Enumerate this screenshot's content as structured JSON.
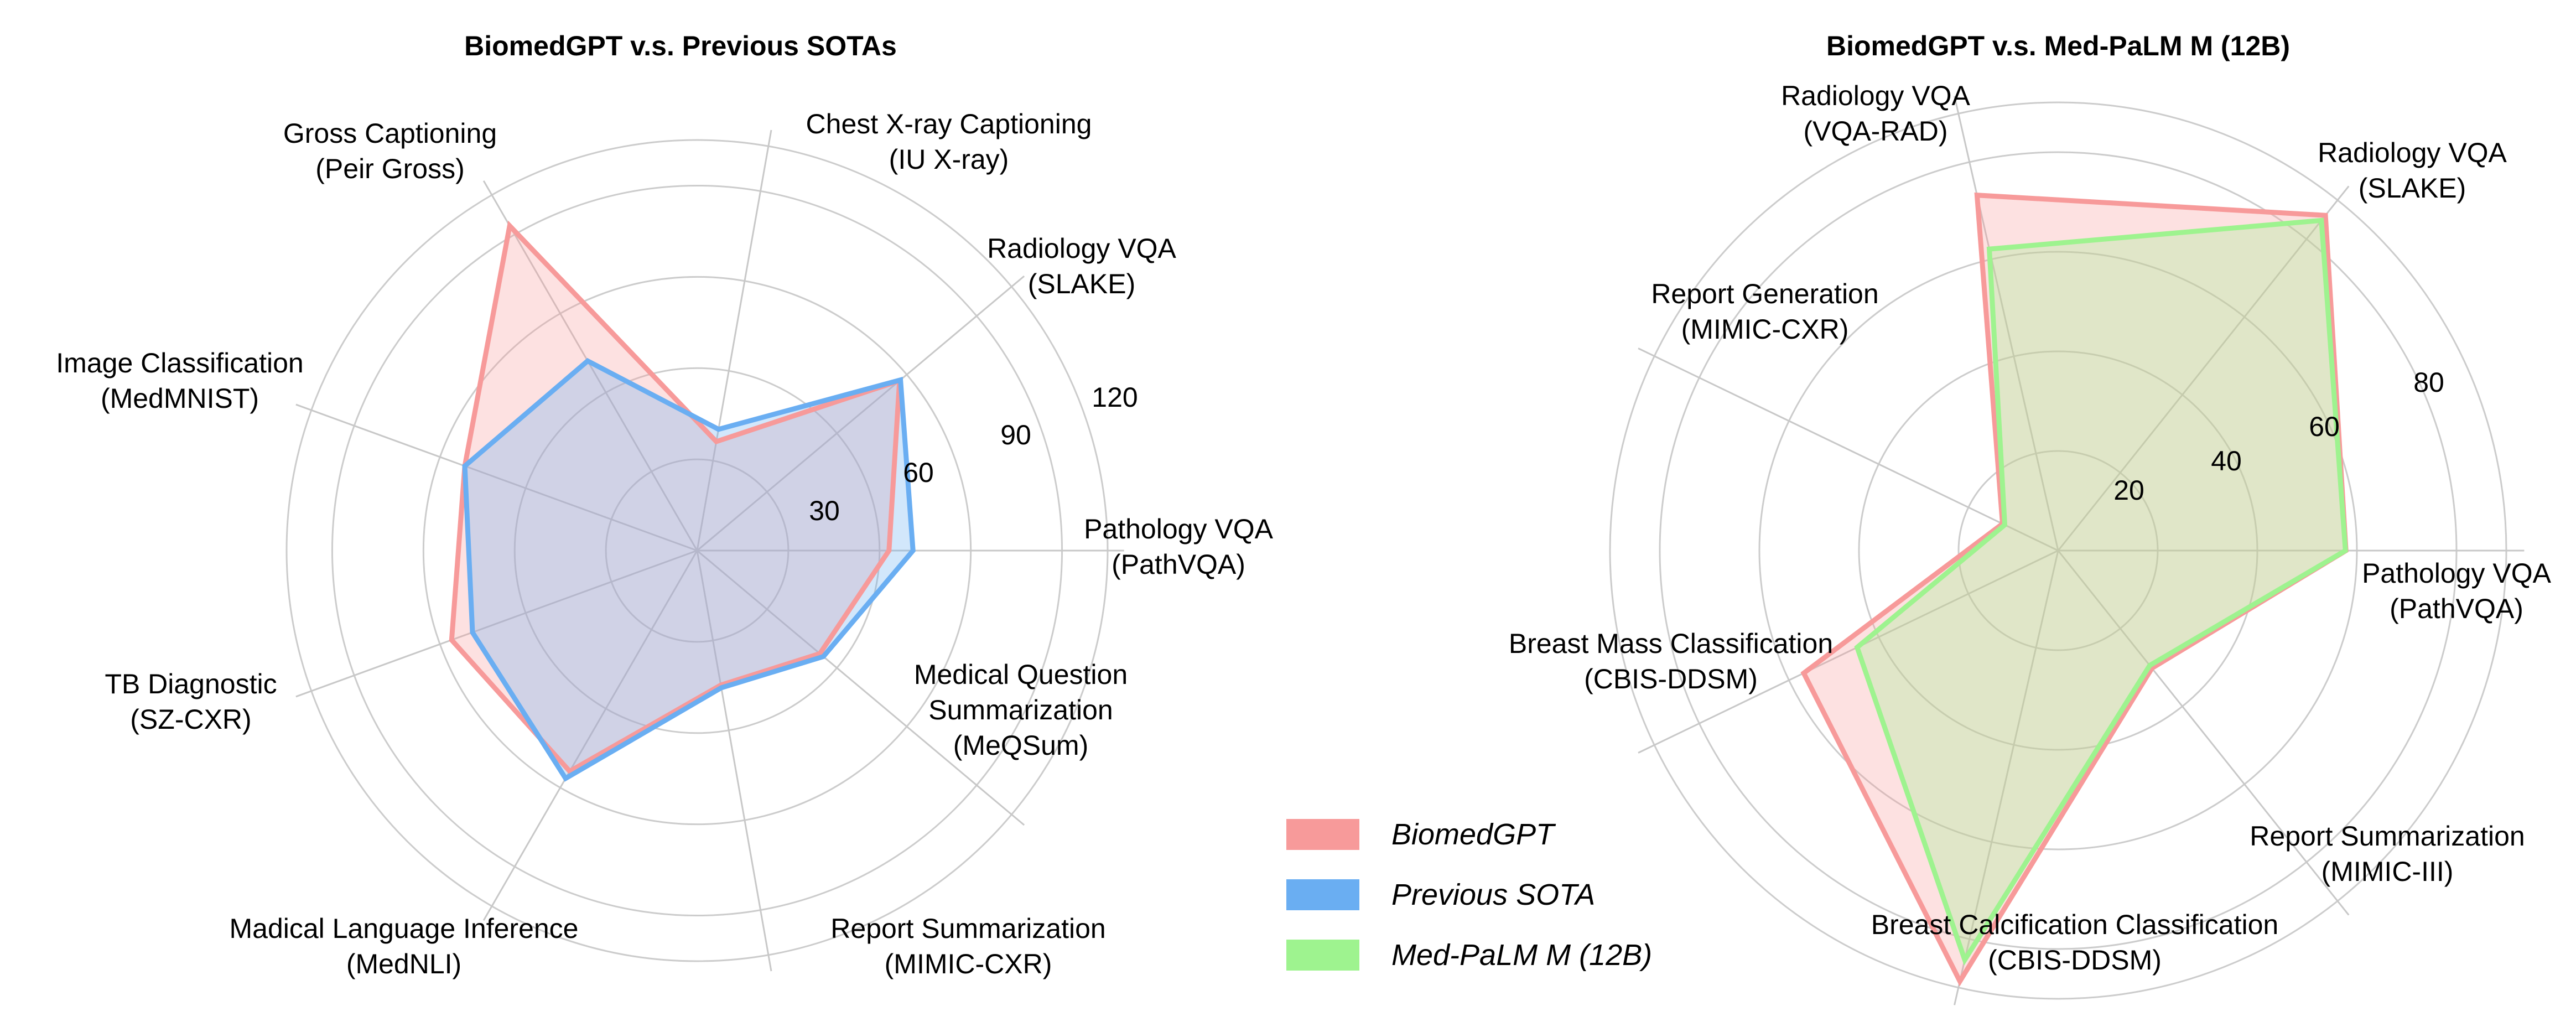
{
  "chart_data": [
    {
      "type": "radar",
      "title": "BiomedGPT v.s. Previous SOTAs",
      "axes": [
        [
          "Pathology VQA",
          "(PathVQA)"
        ],
        [
          "Radiology VQA",
          "(SLAKE)"
        ],
        [
          "Chest X-ray Captioning",
          "(IU X-ray)"
        ],
        [
          "Gross Captioning",
          "(Peir Gross)"
        ],
        [
          "Image Classification",
          "(MedMNIST)"
        ],
        [
          "TB Diagnostic",
          "(SZ-CXR)"
        ],
        [
          "Madical Language Inference",
          "(MedNLI)"
        ],
        [
          "Report Summarization",
          "(MIMIC-CXR)"
        ],
        [
          "Medical Question",
          "Summarization",
          "(MeQSum)"
        ]
      ],
      "rlim": [
        0,
        135
      ],
      "ticks": [
        "30",
        "60",
        "90",
        "120"
      ],
      "series": [
        {
          "name": "BiomedGPT",
          "color": "#f79a9a",
          "values": [
            63.1,
            86.9,
            36.4,
            123.3,
            81.3,
            85.9,
            83.8,
            44.9,
            52.7
          ]
        },
        {
          "name": "Previous SOTA",
          "color": "#6aaef2",
          "values": [
            71.0,
            87.3,
            40.5,
            72.0,
            81.3,
            78.6,
            86.5,
            45.8,
            54.2
          ]
        }
      ]
    },
    {
      "type": "radar",
      "title": "BiomedGPT v.s. Med-PaLM M (12B)",
      "axes": [
        [
          "Pathology VQA",
          "(PathVQA)"
        ],
        [
          "Radiology VQA",
          "(SLAKE)"
        ],
        [
          "Radiology VQA",
          "(VQA-RAD)"
        ],
        [
          "Report Generation",
          "(MIMIC-CXR)"
        ],
        [
          "Breast Mass Classification",
          "(CBIS-DDSM)"
        ],
        [
          "Breast Calcification Classification",
          "(CBIS-DDSM)"
        ],
        [
          "Report Summarization",
          "(MIMIC-III)"
        ]
      ],
      "rlim": [
        0,
        90
      ],
      "ticks": [
        "20",
        "40",
        "60",
        "80"
      ],
      "series": [
        {
          "name": "BiomedGPT",
          "color": "#f79a9a",
          "values": [
            57.8,
            86.1,
            73.2,
            12.4,
            56.7,
            88.7,
            30.2
          ]
        },
        {
          "name": "Med-PaLM M (12B)",
          "color": "#9ef38f",
          "values": [
            57.7,
            84.8,
            62.1,
            11.9,
            44.8,
            84.3,
            29.5
          ]
        }
      ]
    }
  ],
  "legend": [
    {
      "name": "BiomedGPT",
      "color": "#f79a9a"
    },
    {
      "name": "Previous SOTA",
      "color": "#6aaef2"
    },
    {
      "name": "Med-PaLM M (12B)",
      "color": "#9ef38f"
    }
  ]
}
